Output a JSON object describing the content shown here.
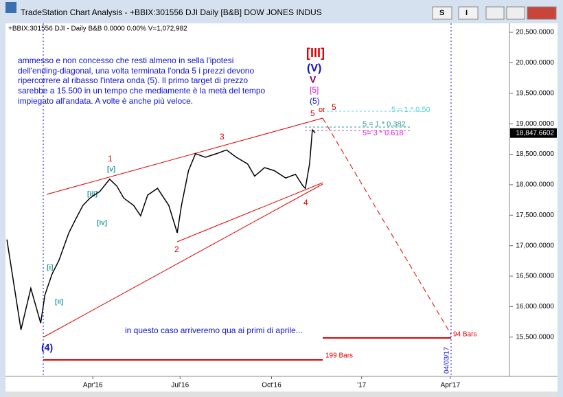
{
  "window": {
    "title": "TradeStation Chart Analysis - +BBIX:301556 DJI Daily [B&B] DOW JONES INDUS",
    "buttons": [
      "S",
      "I"
    ]
  },
  "header": "+BBIX:301556 DJI - Daily  B&B  0.0000  0.00%  V=1,072,982",
  "chart_data": {
    "type": "line",
    "color": "#000000",
    "x": [
      1,
      11,
      18,
      25,
      28,
      33,
      38,
      45,
      50,
      55,
      60,
      67,
      74,
      79,
      84,
      91,
      96,
      101,
      108,
      116,
      122,
      125,
      130,
      135,
      142,
      150,
      157,
      164,
      172,
      177,
      184,
      191,
      199,
      206,
      211,
      213,
      216,
      218,
      220
    ],
    "values": [
      17100,
      15620,
      16300,
      15730,
      16190,
      16530,
      16760,
      17210,
      17440,
      17660,
      17780,
      17890,
      18090,
      17980,
      17780,
      17660,
      17490,
      17830,
      17940,
      17660,
      17210,
      17660,
      18230,
      18510,
      18450,
      18510,
      18570,
      18450,
      18340,
      18140,
      18280,
      18230,
      18110,
      18170,
      17990,
      17940,
      18340,
      18900,
      18850
    ],
    "xlim": [
      0,
      358
    ],
    "xticks": [
      {
        "value": 62,
        "label": "Apr'16"
      },
      {
        "value": 124,
        "label": "Jul'16"
      },
      {
        "value": 189,
        "label": "Oct'16"
      },
      {
        "value": 253,
        "label": "'17"
      },
      {
        "value": 316,
        "label": "Apr'17"
      }
    ],
    "ylim": [
      14855,
      20647
    ],
    "yticks": [
      {
        "value": 15500,
        "label": "15,500.0000"
      },
      {
        "value": 16000,
        "label": "16,000.0000"
      },
      {
        "value": 16500,
        "label": "16,500.0000"
      },
      {
        "value": 17000,
        "label": "17,000.0000"
      },
      {
        "value": 17500,
        "label": "17,500.0000"
      },
      {
        "value": 18000,
        "label": "18,000.0000"
      },
      {
        "value": 18500,
        "label": "18,500.0000"
      },
      {
        "value": 19000,
        "label": "19,000.0000"
      },
      {
        "value": 19500,
        "label": "19,500.0000"
      },
      {
        "value": 20000,
        "label": "20,000.0000"
      },
      {
        "value": 20500,
        "label": "20,500.0000"
      }
    ],
    "last_price": {
      "value": 18847.6602,
      "label": "18,847.6602"
    },
    "note": [
      "ammesso e non concesso che resti almeno in sella l'ipotesi",
      "dell'ending-diagonal, una volta terminata l'onda 5 i prezzi  devono",
      "ripercorrere al ribasso l'intera onda (5). Il primo target di prezzo",
      "sarebbe a 15.500 in un tempo che mediamente è la metà del tempo",
      "impiegato all'andata. A volte è anche più veloce."
    ],
    "projection_note": "in questo caso arriveremo qua ai primi di aprile...",
    "waves": [
      "1",
      "2",
      "3",
      "4",
      "5",
      "5",
      "or",
      "[III]",
      "(V)",
      "V",
      "[5]",
      "(5)",
      "(4)",
      "[i]",
      "[ii]",
      "[iii]",
      "[iv]",
      "[v]"
    ],
    "fib_labels": [
      "5 = 1 * 0.50",
      "5 = 1 * 0.382",
      "5= 3 * 0.618"
    ],
    "bar_counts": [
      "199 Bars",
      "94 Bars"
    ],
    "target_date": "04/03/17"
  }
}
